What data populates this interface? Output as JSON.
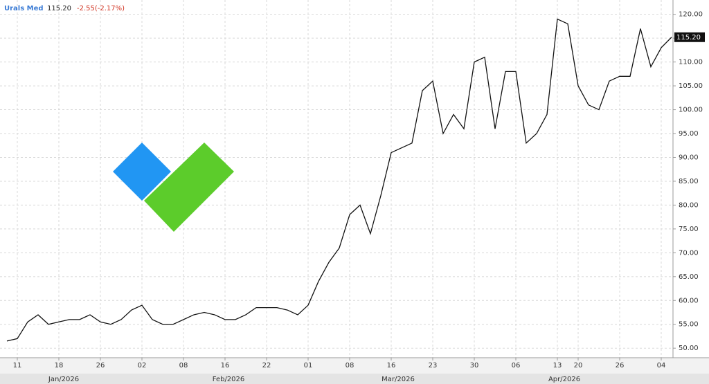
{
  "header": {
    "symbol": "Urals Med",
    "price": "115.20",
    "change": "-2.55(-2.17%)"
  },
  "chart_data": {
    "type": "line",
    "categories": [
      null,
      "11",
      null,
      null,
      null,
      "18",
      null,
      null,
      null,
      "26",
      null,
      null,
      null,
      "02",
      null,
      null,
      null,
      "08",
      null,
      null,
      null,
      "16",
      null,
      null,
      null,
      "22",
      null,
      null,
      null,
      "01",
      null,
      null,
      null,
      "08",
      null,
      null,
      null,
      "16",
      null,
      null,
      null,
      "23",
      null,
      null,
      null,
      "30",
      null,
      null,
      null,
      "06",
      null,
      null,
      null,
      "13",
      null,
      "20",
      null,
      null,
      null,
      "26",
      null,
      null,
      null,
      "04",
      null
    ],
    "month_labels": [
      "Jan/2026",
      "Feb/2026",
      "Mar/2026",
      "Apr/2026"
    ],
    "series": [
      {
        "name": "Urals Med",
        "color": "#111111",
        "values": [
          51.5,
          52,
          55.5,
          57,
          55,
          55.5,
          56,
          56,
          57,
          55.5,
          55,
          56,
          58,
          59,
          56,
          55,
          55,
          56,
          57,
          57.5,
          57,
          56,
          56,
          57,
          58.5,
          58.5,
          58.5,
          58,
          57,
          59,
          64,
          68,
          71,
          78,
          80,
          74,
          82,
          91,
          92,
          93,
          104,
          106,
          95,
          99,
          96,
          110,
          111,
          96,
          108,
          108,
          93,
          95,
          99,
          119,
          118,
          105,
          101,
          100,
          106,
          107,
          107,
          117,
          109,
          113,
          115.2
        ]
      }
    ],
    "last_value_label": "115.20",
    "ylim": [
      48,
      123
    ],
    "yticks": [
      {
        "value": 50,
        "label": "50.00"
      },
      {
        "value": 55,
        "label": "55.00"
      },
      {
        "value": 60,
        "label": "60.00"
      },
      {
        "value": 65,
        "label": "65.00"
      },
      {
        "value": 70,
        "label": "70.00"
      },
      {
        "value": 75,
        "label": "75.00"
      },
      {
        "value": 80,
        "label": "80.00"
      },
      {
        "value": 85,
        "label": "85.00"
      },
      {
        "value": 90,
        "label": "90.00"
      },
      {
        "value": 95,
        "label": "95.00"
      },
      {
        "value": 100,
        "label": "100.00"
      },
      {
        "value": 105,
        "label": "105.00"
      },
      {
        "value": 110,
        "label": "110.00"
      },
      {
        "value": 115,
        "label": "115.00"
      },
      {
        "value": 120,
        "label": "120.00"
      }
    ],
    "grid": true
  }
}
